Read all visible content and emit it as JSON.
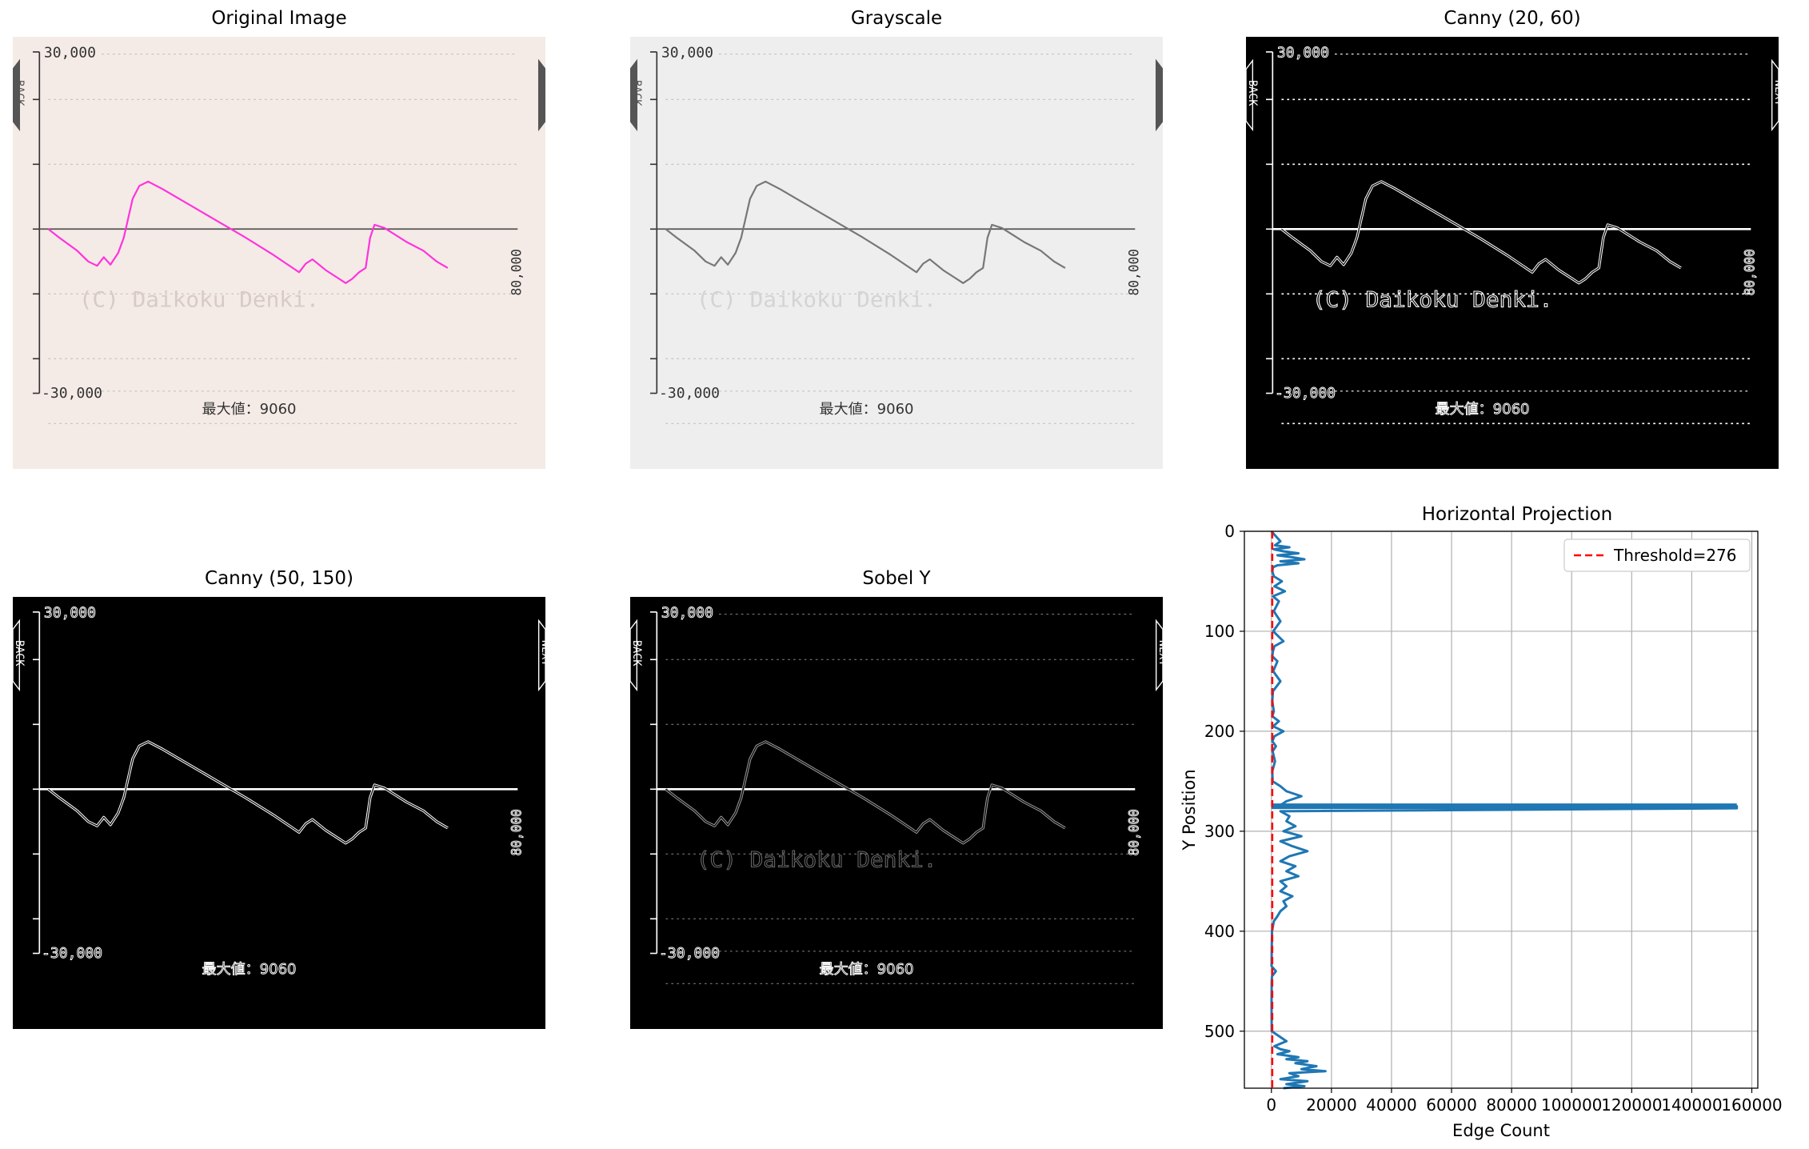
{
  "figure": {
    "panels": [
      {
        "id": "original",
        "title": "Original Image",
        "mode": "original"
      },
      {
        "id": "grayscale",
        "title": "Grayscale",
        "mode": "gray"
      },
      {
        "id": "canny1",
        "title": "Canny (20, 60)",
        "mode": "canny-dense"
      },
      {
        "id": "canny2",
        "title": "Canny (50, 150)",
        "mode": "canny"
      },
      {
        "id": "sobel",
        "title": "Sobel Y",
        "mode": "sobel"
      }
    ]
  },
  "graph": {
    "top_label": "30,000",
    "bottom_label": "-30,000",
    "right_label": "80,000",
    "watermark": "(C) Daikoku Denki.",
    "footer": "最大値：9060",
    "left_tab": "BACK",
    "right_tab": "NEXT",
    "colors": {
      "original_bg": "#f5ebe6",
      "gray_bg": "#eeeeee",
      "original_line": "#ff33dd",
      "gray_line": "#777777"
    }
  },
  "chart_data": {
    "type": "line",
    "title": "Horizontal Projection",
    "xlabel": "Edge Count",
    "ylabel": "Y Position",
    "xlim": [
      -9000,
      162000
    ],
    "ylim": [
      557,
      0
    ],
    "xticks": [
      0,
      20000,
      40000,
      60000,
      80000,
      100000,
      120000,
      140000,
      160000
    ],
    "xtick_labels": [
      "0",
      "20000",
      "40000",
      "60000",
      "80000",
      "100000",
      "120000",
      "140000",
      "160000"
    ],
    "yticks": [
      0,
      100,
      200,
      300,
      400,
      500
    ],
    "ytick_labels": [
      "0",
      "100",
      "200",
      "300",
      "400",
      "500"
    ],
    "grid": true,
    "legend_position": "top-right",
    "threshold": {
      "name": "Threshold=276",
      "value": 276,
      "color": "#ff0000"
    },
    "series": [
      {
        "color": "#1f77b4",
        "x": [
          0,
          1500,
          3000,
          1200,
          6000,
          800,
          4000,
          9000,
          2000,
          7000,
          11000,
          3000,
          9000,
          2000,
          500,
          300,
          800,
          3500,
          1000,
          4500,
          500,
          2500,
          800,
          3000,
          600,
          4000,
          1000,
          500,
          300,
          2000,
          600,
          3000,
          500,
          300,
          800,
          300,
          2500,
          600,
          4000,
          1000,
          300,
          1500,
          400,
          1200,
          300,
          400,
          3000,
          5000,
          10000,
          5000,
          3000,
          155000,
          155000,
          3000,
          6000,
          5000,
          8000,
          4000,
          10000,
          3000,
          7000,
          12000,
          6000,
          3000,
          8000,
          5000,
          9000,
          3000,
          5000,
          3000,
          7000,
          4000,
          5000,
          3000,
          2000,
          800,
          200,
          150,
          100,
          80,
          50,
          1500,
          200,
          100,
          80,
          50,
          60,
          100,
          5000,
          1000,
          3000,
          6000,
          2000,
          9000,
          5000,
          12000,
          8000,
          15000,
          10000,
          18000,
          6000,
          9000,
          3000,
          12000,
          5000,
          11000,
          4000
        ],
        "y": [
          0,
          5,
          10,
          14,
          16,
          18,
          20,
          22,
          24,
          26,
          28,
          30,
          32,
          34,
          36,
          40,
          45,
          50,
          55,
          60,
          65,
          70,
          80,
          90,
          100,
          110,
          115,
          120,
          125,
          130,
          140,
          150,
          160,
          170,
          180,
          185,
          190,
          195,
          200,
          205,
          210,
          215,
          220,
          230,
          240,
          250,
          255,
          260,
          265,
          270,
          274,
          275,
          277,
          280,
          285,
          290,
          295,
          300,
          305,
          310,
          315,
          320,
          325,
          330,
          335,
          340,
          345,
          350,
          355,
          360,
          365,
          370,
          375,
          380,
          385,
          390,
          400,
          410,
          420,
          430,
          435,
          440,
          445,
          450,
          460,
          470,
          480,
          500,
          510,
          515,
          518,
          520,
          523,
          526,
          528,
          530,
          532,
          535,
          538,
          540,
          542,
          545,
          548,
          550,
          553,
          555,
          557
        ]
      }
    ]
  }
}
